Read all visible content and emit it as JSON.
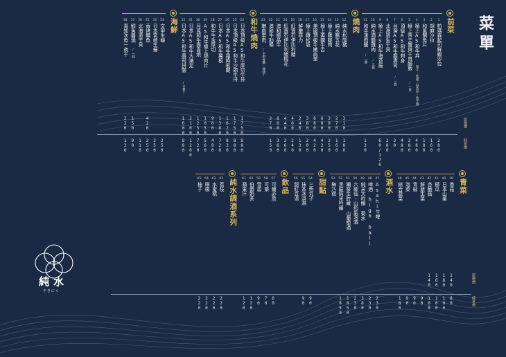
{
  "title": "菜單",
  "price_labels": {
    "original": "原價價",
    "member": "純享價"
  },
  "sections_top": [
    {
      "key": "appetizer",
      "label": "前菜",
      "items": [
        {
          "no": "1",
          "name": "柏瑪森起司鮮蝦沙拉",
          "sub": "",
          "p1": "",
          "p2": "280"
        },
        {
          "no": "2",
          "name": "胡麻沙拉",
          "sub": "",
          "p1": "",
          "p2": "160"
        },
        {
          "no": "3",
          "name": "和風鯛魚片",
          "sub": "",
          "p1": "",
          "p2": "180"
        },
        {
          "no": "4",
          "name": "極上A5和牛丼",
          "sub": "和牛・松露・鮭魚卵・魚子醬",
          "p1": "",
          "p2": "480"
        },
        {
          "no": "5",
          "name": "極上帝王蟹與干貝醋飯",
          "sub": "/一貫",
          "p1": "",
          "p2": "280"
        },
        {
          "no": "6",
          "name": "頂級A5和牛刺身",
          "sub": "",
          "p1": "",
          "p2": "480"
        },
        {
          "no": "7",
          "name": "台灣A5和牛握壽司",
          "sub": "/一貫",
          "p1": "",
          "p2": "30"
        },
        {
          "no": "8",
          "name": "北海道生干貝",
          "sub": "",
          "p1": "",
          "p2": "280"
        },
        {
          "no": "9",
          "name": "極上A5和牛海苔捲",
          "sub": "",
          "p1": "",
          "p2": "60/120"
        },
        {
          "no": "10",
          "name": "純水酒醋雞肉",
          "sub": "/三醬",
          "p1": "",
          "p2": ""
        },
        {
          "no": "11",
          "name": "和牛漢肉醬",
          "sub": "/一醬",
          "p1": "",
          "p2": "130"
        }
      ]
    },
    {
      "key": "grill",
      "label": "燒肉",
      "items": [
        {
          "no": "12",
          "name": "純水松阪豬",
          "sub": "",
          "p1": "310",
          "p2": "180"
        },
        {
          "no": "13",
          "name": "純水豚五花",
          "sub": "",
          "p1": "270",
          "p2": "160"
        },
        {
          "no": "14",
          "name": "極上雞腿肉",
          "sub": "",
          "p1": "380",
          "p2": "250"
        },
        {
          "no": "15",
          "name": "極上美國牛舌",
          "sub": "",
          "p1": "680",
          "p2": "420"
        },
        {
          "no": "16",
          "name": "美國頂級牛嫩肩里",
          "sub": "",
          "p1": "680",
          "p2": "420"
        },
        {
          "no": "17",
          "name": "極上嫩松坂",
          "sub": "",
          "p1": "380",
          "p2": "200"
        },
        {
          "no": "18",
          "name": "鮮嫩菲力",
          "sub": "",
          "p1": "240",
          "p2": "130"
        },
        {
          "no": "19",
          "name": "紅寶石伊比利豬",
          "sub": "",
          "p1": "400",
          "p2": "240"
        },
        {
          "no": "20",
          "name": "紅寶石伊比利豬梅花",
          "sub": "",
          "p1": "440",
          "p2": "260"
        },
        {
          "no": "21",
          "name": "澳和極品牛",
          "sub": "",
          "p1": "600",
          "p2": "360"
        },
        {
          "no": "22",
          "name": "澳和牛肋條",
          "sub": "",
          "p1": "270",
          "p2": "150"
        },
        {
          "no": "23",
          "name": "嫩肩里肉",
          "sub": "(主廚推薦・雞腿)",
          "p1": "",
          "p2": ""
        }
      ]
    },
    {
      "key": "wagyu",
      "label": "和牛燒肉",
      "items": [
        {
          "no": "24",
          "name": "日本頂級A5和牛厚切牛排",
          "sub": "",
          "p1": "1750",
          "p2": "880"
        },
        {
          "no": "25",
          "name": "日本頂級A5和牛沙朗牛排",
          "sub": "",
          "p1": "1750",
          "p2": "880"
        },
        {
          "no": "26",
          "name": "日本A5和牛霜降板腱",
          "sub": "",
          "p1": "1620",
          "p2": "820"
        },
        {
          "no": "27",
          "name": "日本A5和牛翼板",
          "sub": "",
          "p1": "1300",
          "p2": "720"
        },
        {
          "no": "28",
          "name": "和牛牛舌厚切",
          "sub": "",
          "p1": "900",
          "p2": "480"
        },
        {
          "no": "29",
          "name": "A5和牛極上燒肉片",
          "sub": "",
          "p1": "1050",
          "p2": "560"
        },
        {
          "no": "30",
          "name": "月見和牛壽喜燒",
          "sub": "",
          "p1": "1250",
          "p2": "720"
        },
        {
          "no": "31",
          "name": "日本A5和牛大滿足",
          "sub": "",
          "p1": "2100",
          "p2": "1200"
        },
        {
          "no": "32",
          "name": "日本A5和牛壽司拼盤",
          "sub": "(五貫)",
          "p1": "1600",
          "p2": "880"
        }
      ]
    },
    {
      "key": "seafood",
      "label": "海鮮",
      "items": [
        {
          "no": "33",
          "name": "文甲生蠔",
          "sub": "",
          "p1": "",
          "p2": "250"
        },
        {
          "no": "34",
          "name": "日本宮崎生蠔",
          "sub": "",
          "p1": "",
          "p2": "250"
        },
        {
          "no": "35",
          "name": "香烤鰻魚",
          "sub": "",
          "p1": "420",
          "p2": "250"
        },
        {
          "no": "36",
          "name": "北海道干貝",
          "sub": "",
          "p1": "",
          "p2": "110"
        },
        {
          "no": "37",
          "name": "鱈魚醬燒",
          "sub": "/一個",
          "p1": "150",
          "p2": "90"
        },
        {
          "no": "38",
          "name": "喜知次魚一夜干",
          "sub": "",
          "p1": "220",
          "p2": "130"
        }
      ]
    }
  ],
  "sections_bottom": [
    {
      "key": "veg",
      "label": "青菜",
      "items": [
        {
          "no": "39",
          "name": "香菇",
          "p1": "140",
          "p2": "80"
        },
        {
          "no": "40",
          "name": "日本山藥",
          "p1": "180",
          "p2": "100"
        },
        {
          "no": "41",
          "name": "櫛瓜",
          "p1": "160",
          "p2": "100"
        },
        {
          "no": "42",
          "name": "杏鮑菇",
          "p1": "140",
          "p2": "100"
        },
        {
          "no": "43",
          "name": "鮮蔬生菜",
          "p1": "",
          "p2": "90"
        },
        {
          "no": "44",
          "name": "青椒",
          "p1": "",
          "p2": "90"
        },
        {
          "no": "45",
          "name": "泡菜",
          "p1": "",
          "p2": "90"
        },
        {
          "no": "46",
          "name": "綜合蔬菜",
          "p1": "",
          "p2": "180"
        }
      ]
    },
    {
      "key": "sake",
      "label": "酒水",
      "items": [
        {
          "no": "47",
          "name": "Asahi生啤",
          "p1": "",
          "p2": "230"
        },
        {
          "no": "48",
          "name": "啤酒 high ball",
          "p1": "",
          "p2": "230"
        },
        {
          "no": "49",
          "name": "純米大吟醸 菊水",
          "p1": "",
          "p2": "380"
        },
        {
          "no": "50",
          "name": "六歌仙・山形氣泡酒",
          "p1": "",
          "p2": "230"
        },
        {
          "no": "51",
          "name": "獺祭生貯藏 山葡萄酒",
          "p1": "",
          "p2": "1850"
        },
        {
          "no": "52",
          "name": "黑龍純米吟醸",
          "p1": "",
          "p2": "1850"
        },
        {
          "no": "53",
          "name": "梅乃宿",
          "p1": "",
          "p2": ""
        }
      ]
    },
    {
      "key": "dessert",
      "label": "甜點",
      "items": [
        {
          "no": "54",
          "name": "三色丸子",
          "p1": "",
          "p2": "90"
        },
        {
          "no": "55",
          "name": "抹茶冰淇淋",
          "p1": "",
          "p2": "90"
        },
        {
          "no": "56",
          "name": "甜紅豆湯",
          "p1": "",
          "p2": ""
        }
      ]
    },
    {
      "key": "drink",
      "label": "飲品",
      "items": [
        {
          "no": "57",
          "name": "可爾必思",
          "p1": "",
          "p2": "60"
        },
        {
          "no": "58",
          "name": "可樂",
          "p1": "",
          "p2": "70"
        },
        {
          "no": "59",
          "name": "雪碧",
          "p1": "",
          "p2": "90"
        },
        {
          "no": "60",
          "name": "伯爵奶茶",
          "p1": "",
          "p2": "120"
        },
        {
          "no": "61",
          "name": "蘋果汁",
          "p1": "",
          "p2": "120"
        }
      ]
    },
    {
      "key": "nonalc",
      "label": "純水調酒系列",
      "items": [
        {
          "no": "62",
          "name": "荔枝",
          "p1": "",
          "p2": "220"
        },
        {
          "no": "63",
          "name": "水蜜桃",
          "p1": "",
          "p2": "220"
        },
        {
          "no": "64",
          "name": "檸檬",
          "p1": "",
          "p2": "220"
        },
        {
          "no": "65",
          "name": "柚子",
          "p1": "",
          "p2": "220"
        }
      ]
    }
  ],
  "brand": {
    "name": "純水",
    "kana": "やきにく"
  }
}
